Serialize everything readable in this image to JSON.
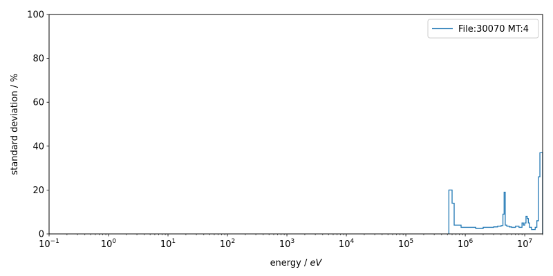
{
  "chart_data": {
    "type": "line",
    "step": true,
    "xlabel": "energy / ",
    "xlabel_unit": "eV",
    "ylabel": "standard deviation / %",
    "xscale": "log",
    "xlim": [
      0.1,
      20000000
    ],
    "ylim": [
      0,
      100
    ],
    "x_tick_base": "10",
    "x_tick_exponents": [
      "−1",
      "0",
      "1",
      "2",
      "3",
      "4",
      "5",
      "6",
      "7"
    ],
    "y_ticks": [
      "0",
      "20",
      "40",
      "60",
      "80",
      "100"
    ],
    "grid": false,
    "legend_position": "top-right",
    "series": [
      {
        "name": "File:30070 MT:4",
        "color": "#1f77b4",
        "x": [
          530000,
          560000,
          600000,
          650000,
          700000,
          750000,
          850000,
          1000000,
          1200000,
          1500000,
          2000000,
          2500000,
          3000000,
          3500000,
          4000000,
          4300000,
          4500000,
          4700000,
          5000000,
          5500000,
          6000000,
          7000000,
          8000000,
          9000000,
          9500000,
          10000000,
          10500000,
          11000000,
          11500000,
          12000000,
          13000000,
          14000000,
          15000000,
          16000000,
          17000000,
          18000000,
          20000000
        ],
        "y": [
          20,
          20,
          14,
          4,
          4,
          4,
          3,
          3,
          3,
          2.5,
          3,
          3,
          3.2,
          3.5,
          3.8,
          9,
          19,
          4,
          3.5,
          3.2,
          3,
          3.5,
          3,
          5,
          4,
          5,
          8,
          7,
          5,
          3,
          2,
          2,
          3,
          6,
          26,
          37,
          37
        ]
      }
    ]
  }
}
